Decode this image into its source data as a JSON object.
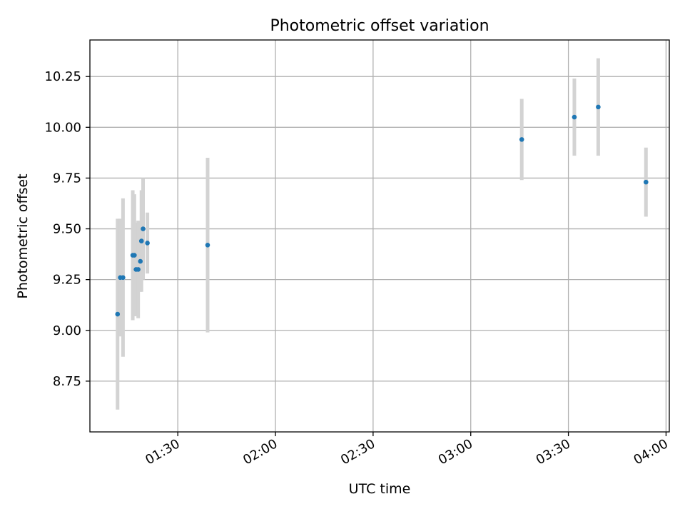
{
  "chart_data": {
    "type": "scatter",
    "title": "Photometric offset variation",
    "xlabel": "UTC time",
    "ylabel": "Photometric offset",
    "x_tick_labels": [
      "01:30",
      "02:00",
      "02:30",
      "03:00",
      "03:30",
      "04:00"
    ],
    "x_ticks": [
      "01:30",
      "02:00",
      "02:30",
      "03:00",
      "03:30",
      "04:00"
    ],
    "y_ticks": [
      8.75,
      9.0,
      9.25,
      9.5,
      9.75,
      10.0,
      10.25
    ],
    "y_tick_labels": [
      "8.75",
      "9.00",
      "9.25",
      "9.50",
      "9.75",
      "10.00",
      "10.25"
    ],
    "xlim": [
      "01:03",
      "04:01"
    ],
    "ylim": [
      8.5,
      10.43
    ],
    "grid": true,
    "marker_color": "#1f77b4",
    "errorbar_color": "#d3d3d3",
    "points": [
      {
        "x": "01:11:30",
        "y": 9.08,
        "yerr": 0.47
      },
      {
        "x": "01:12:20",
        "y": 9.26,
        "yerr": 0.29
      },
      {
        "x": "01:13:10",
        "y": 9.26,
        "yerr": 0.39
      },
      {
        "x": "01:16:10",
        "y": 9.37,
        "yerr": 0.32
      },
      {
        "x": "01:16:40",
        "y": 9.37,
        "yerr": 0.3
      },
      {
        "x": "01:17:10",
        "y": 9.3,
        "yerr": 0.23
      },
      {
        "x": "01:17:50",
        "y": 9.3,
        "yerr": 0.24
      },
      {
        "x": "01:18:30",
        "y": 9.34,
        "yerr": 0.15
      },
      {
        "x": "01:18:50",
        "y": 9.44,
        "yerr": 0.25
      },
      {
        "x": "01:19:20",
        "y": 9.5,
        "yerr": 0.25
      },
      {
        "x": "01:20:40",
        "y": 9.43,
        "yerr": 0.15
      },
      {
        "x": "01:39:10",
        "y": 9.42,
        "yerr": 0.43
      },
      {
        "x": "03:15:40",
        "y": 9.94,
        "yerr": 0.2
      },
      {
        "x": "03:31:50",
        "y": 10.05,
        "yerr": 0.19
      },
      {
        "x": "03:39:10",
        "y": 10.1,
        "yerr": 0.24
      },
      {
        "x": "03:53:50",
        "y": 9.73,
        "yerr": 0.17
      }
    ]
  }
}
